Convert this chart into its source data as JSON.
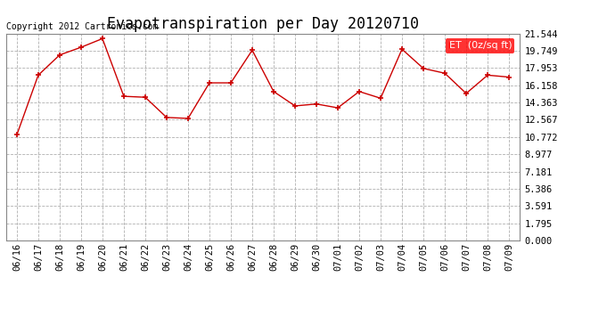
{
  "title": "Evapotranspiration per Day 20120710",
  "copyright": "Copyright 2012 Cartronics.com",
  "legend_label": "ET  (0z/sq ft)",
  "line_color": "#cc0000",
  "marker": "+",
  "background_color": "#ffffff",
  "grid_color": "#b0b0b0",
  "x_labels": [
    "06/16",
    "06/17",
    "06/18",
    "06/19",
    "06/20",
    "06/21",
    "06/22",
    "06/23",
    "06/24",
    "06/25",
    "06/26",
    "06/27",
    "06/28",
    "06/29",
    "06/30",
    "07/01",
    "07/02",
    "07/03",
    "07/04",
    "07/05",
    "07/06",
    "07/07",
    "07/08",
    "07/09"
  ],
  "y_values": [
    11.0,
    17.2,
    19.3,
    20.1,
    21.0,
    15.0,
    14.9,
    12.8,
    12.7,
    16.4,
    16.4,
    19.8,
    15.5,
    14.0,
    14.2,
    13.8,
    15.5,
    14.8,
    19.9,
    17.9,
    17.4,
    15.3,
    17.2,
    17.0
  ],
  "y_ticks": [
    0.0,
    1.795,
    3.591,
    5.386,
    7.181,
    8.977,
    10.772,
    12.567,
    14.363,
    16.158,
    17.953,
    19.749,
    21.544
  ],
  "ylim": [
    0,
    21.544
  ],
  "title_fontsize": 12,
  "tick_fontsize": 7.5,
  "copyright_fontsize": 7,
  "legend_fontsize": 8
}
